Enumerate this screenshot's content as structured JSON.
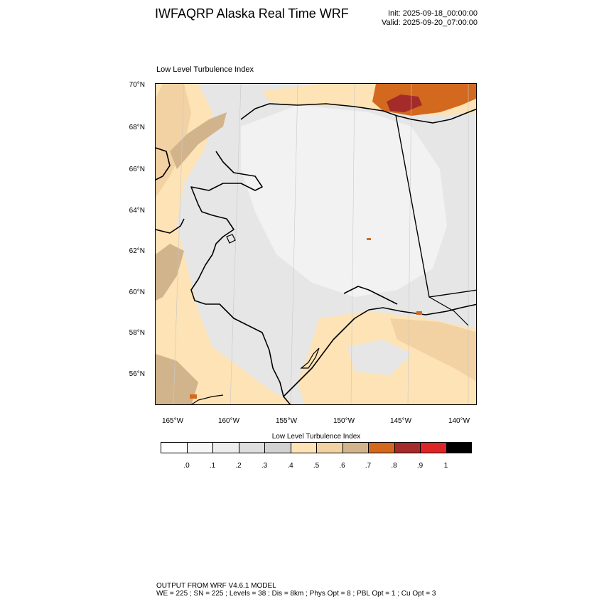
{
  "header": {
    "title": "IWFAQRP Alaska Real Time WRF",
    "init": "Init: 2025-09-18_00:00:00",
    "valid": "Valid: 2025-09-20_07:00:00"
  },
  "panel": {
    "title": "Low Level Turbulence Index"
  },
  "map": {
    "lat_ticks": [
      "70°N",
      "68°N",
      "66°N",
      "64°N",
      "62°N",
      "60°N",
      "58°N",
      "56°N"
    ],
    "lon_ticks": [
      "165°W",
      "160°W",
      "155°W",
      "150°W",
      "145°W",
      "140°W"
    ]
  },
  "legend": {
    "title": "Low Level Turbulence Index",
    "labels": [
      ".0",
      ".1",
      ".2",
      ".3",
      ".4",
      ".5",
      ".6",
      ".7",
      ".8",
      ".9",
      "1"
    ],
    "colors": [
      "#ffffff",
      "#f7f7f7",
      "#ededed",
      "#dedede",
      "#d2d2d2",
      "#fde3b5",
      "#f2d2a2",
      "#d2b48c",
      "#d2691e",
      "#a52a2a",
      "#dc2626",
      "#000000"
    ]
  },
  "footer": {
    "line1": "OUTPUT FROM WRF V4.6.1 MODEL",
    "line2": "WE = 225 ; SN = 225 ; Levels = 38 ; Dis = 8km ; Phys Opt = 8 ; PBL Opt = 1 ; Cu Opt = 3"
  }
}
